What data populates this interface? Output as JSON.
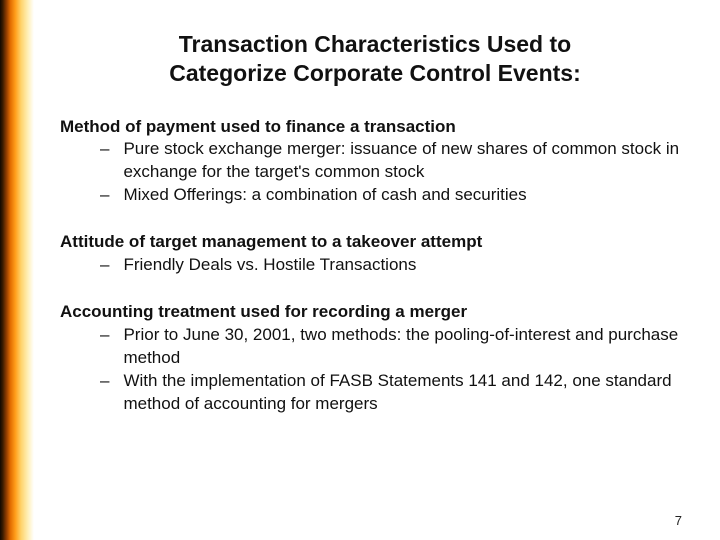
{
  "title_line1": "Transaction Characteristics Used to",
  "title_line2": "Categorize Corporate Control Events:",
  "sections": [
    {
      "heading": "Method of payment used to finance a transaction",
      "bullets": [
        "Pure stock exchange merger: issuance of new shares of common stock in exchange for the target's common stock",
        "Mixed Offerings: a combination of cash and securities"
      ]
    },
    {
      "heading": "Attitude of target management to a takeover attempt",
      "bullets": [
        "Friendly Deals vs. Hostile Transactions"
      ]
    },
    {
      "heading": "Accounting treatment used for recording a merger",
      "bullets": [
        "Prior to June 30, 2001, two methods: the pooling-of-interest and purchase method",
        "With the implementation of FASB Statements 141 and 142, one standard method of accounting for mergers"
      ]
    }
  ],
  "page_number": "7",
  "colors": {
    "text": "#111111",
    "background": "#ffffff"
  }
}
